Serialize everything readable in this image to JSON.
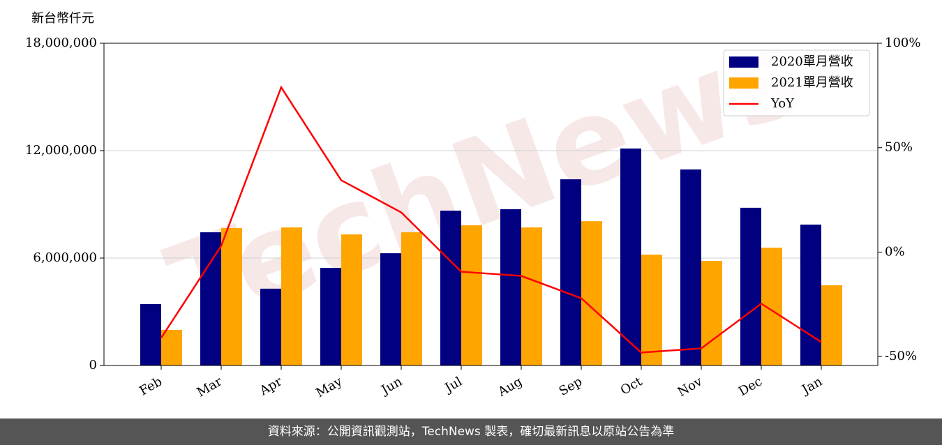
{
  "chart_data": {
    "type": "bar",
    "y_axis_label": "新台幣仟元",
    "categories": [
      "Feb",
      "Mar",
      "Apr",
      "May",
      "Jun",
      "Jul",
      "Aug",
      "Sep",
      "Oct",
      "Nov",
      "Dec",
      "Jan"
    ],
    "series": [
      {
        "name": "2020單月營收",
        "color": "#000080",
        "values": [
          3430000,
          7440000,
          4290000,
          5450000,
          6270000,
          8650000,
          8730000,
          10400000,
          12120000,
          10950000,
          8810000,
          7870000
        ]
      },
      {
        "name": "2021單月營收",
        "color": "#ffa500",
        "values": [
          1990000,
          7680000,
          7710000,
          7320000,
          7440000,
          7830000,
          7710000,
          8060000,
          6190000,
          5840000,
          6580000,
          4480000
        ]
      },
      {
        "name": "YoY",
        "type": "line",
        "axis": "y2",
        "color": "#ff0000",
        "values": [
          -41.1,
          3.0,
          78.9,
          34.4,
          19.0,
          -9.4,
          -11.4,
          -22.1,
          -48.1,
          -46.1,
          -24.7,
          -43.1
        ]
      }
    ],
    "ylim": [
      0,
      18000000
    ],
    "yticks": [
      0,
      {
        "value": 6000000,
        "label": "6,000,000"
      },
      {
        "value": 12000000,
        "label": "12,000,000"
      },
      {
        "value": 18000000,
        "label": "18,000,000"
      }
    ],
    "y2lim": [
      -54.3,
      100
    ],
    "y2ticks": [
      {
        "value": -50,
        "label": "-50%"
      },
      {
        "value": 0,
        "label": "0%"
      },
      {
        "value": 50,
        "label": "50%"
      },
      {
        "value": 100,
        "label": "100%"
      }
    ],
    "grid": true,
    "legend": "upper right"
  },
  "watermark": "TechNews",
  "footer": "資料來源：公開資訊觀測站，TechNews 製表，確切最新訊息以原站公告為準"
}
